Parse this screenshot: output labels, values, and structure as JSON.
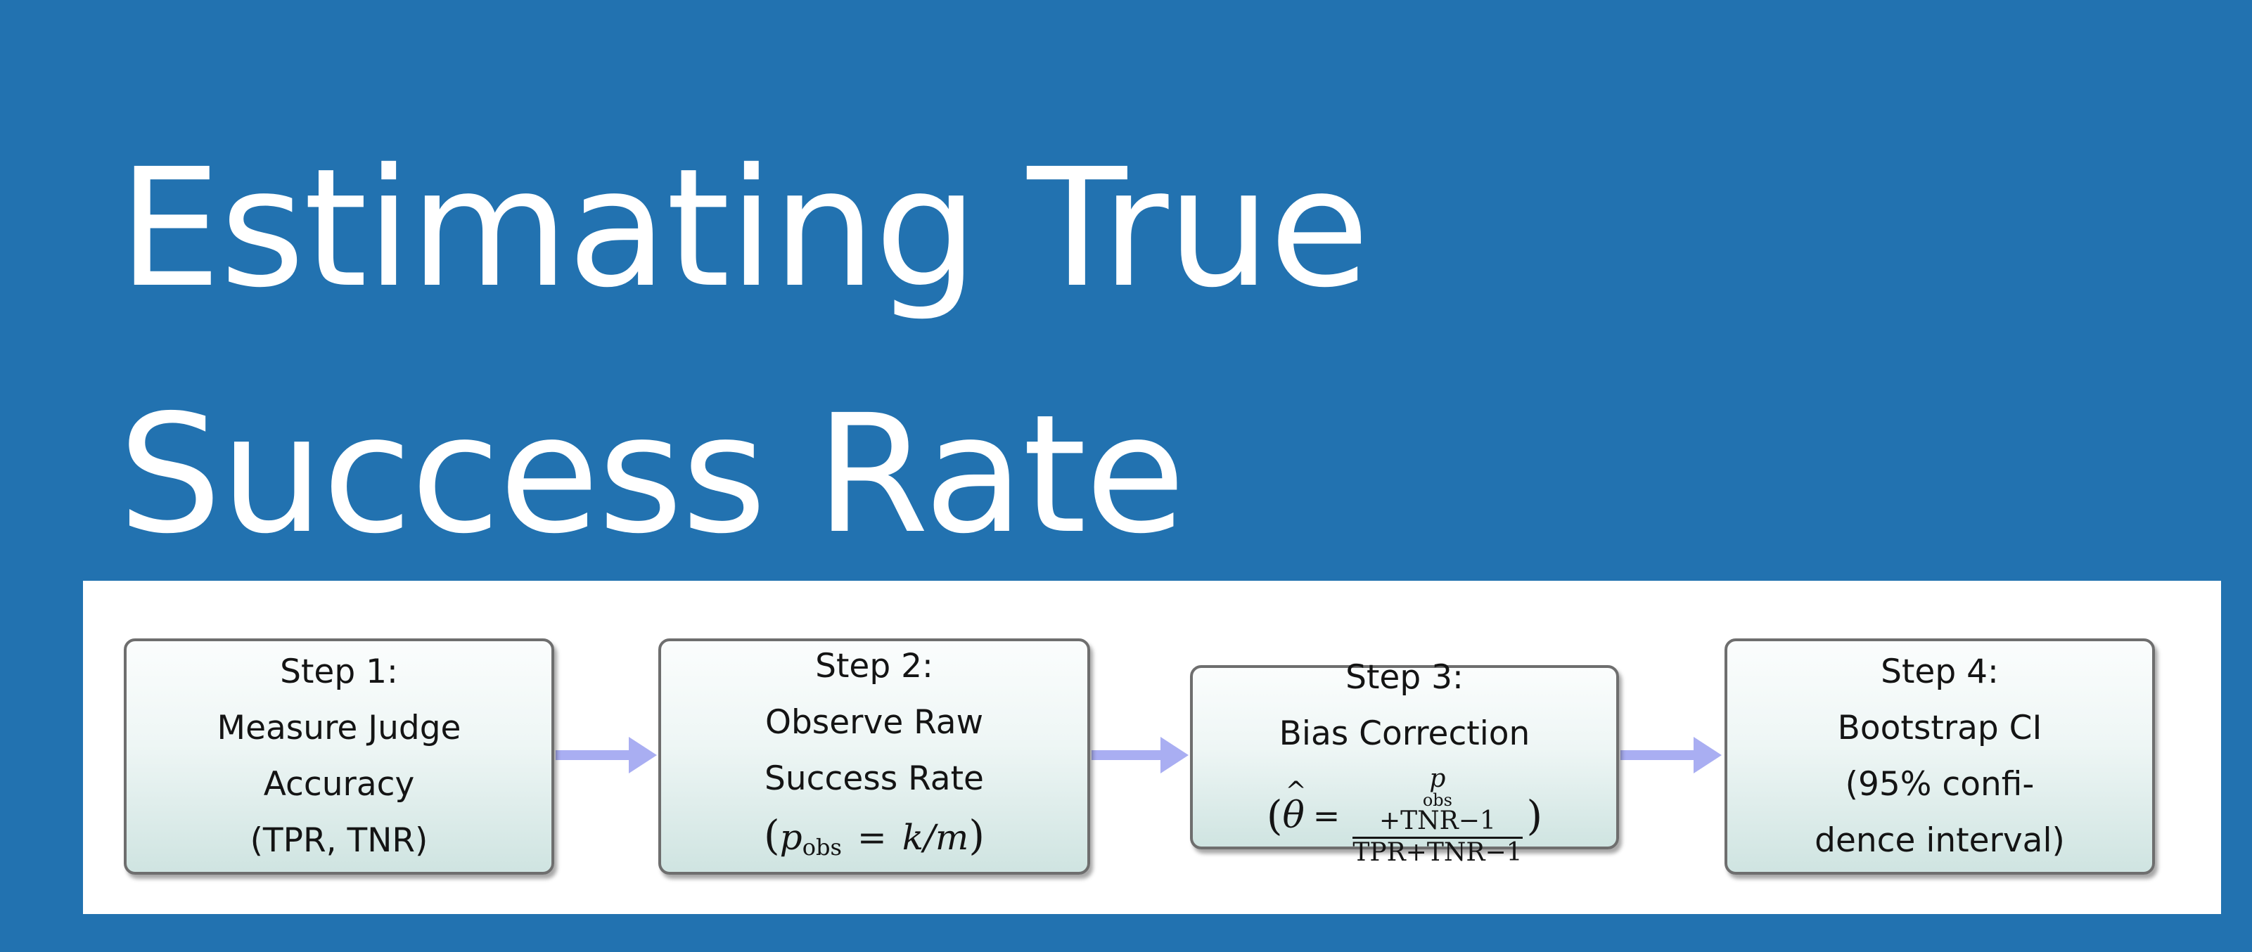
{
  "title": {
    "line1": "Estimating True",
    "line2": "Success Rate"
  },
  "steps": [
    {
      "heading": "Step 1:",
      "lines": [
        "Measure Judge",
        "Accuracy",
        "(TPR, TNR)"
      ]
    },
    {
      "heading": "Step 2:",
      "lines": [
        "Observe Raw",
        "Success Rate"
      ],
      "formula": {
        "open": "(",
        "var": "p",
        "sub": "obs",
        "eq": "=",
        "rhs": "k/m",
        "close": ")"
      }
    },
    {
      "heading": "Step 3:",
      "lines": [
        "Bias Correction"
      ],
      "formula": {
        "open": "(",
        "lhs": "θ",
        "hat": "^",
        "eq": "=",
        "num_var": "p",
        "num_sub": "obs",
        "num_rest": "+TNR−1",
        "den": "TPR+TNR−1",
        "close": ")"
      }
    },
    {
      "heading": "Step 4:",
      "lines": [
        "Bootstrap CI",
        "(95% confi-",
        "dence interval)"
      ]
    }
  ],
  "colors": {
    "background": "#2272b0",
    "panel": "#ffffff",
    "arrow": "#a9aef2",
    "box_border": "#6e6e6e"
  }
}
